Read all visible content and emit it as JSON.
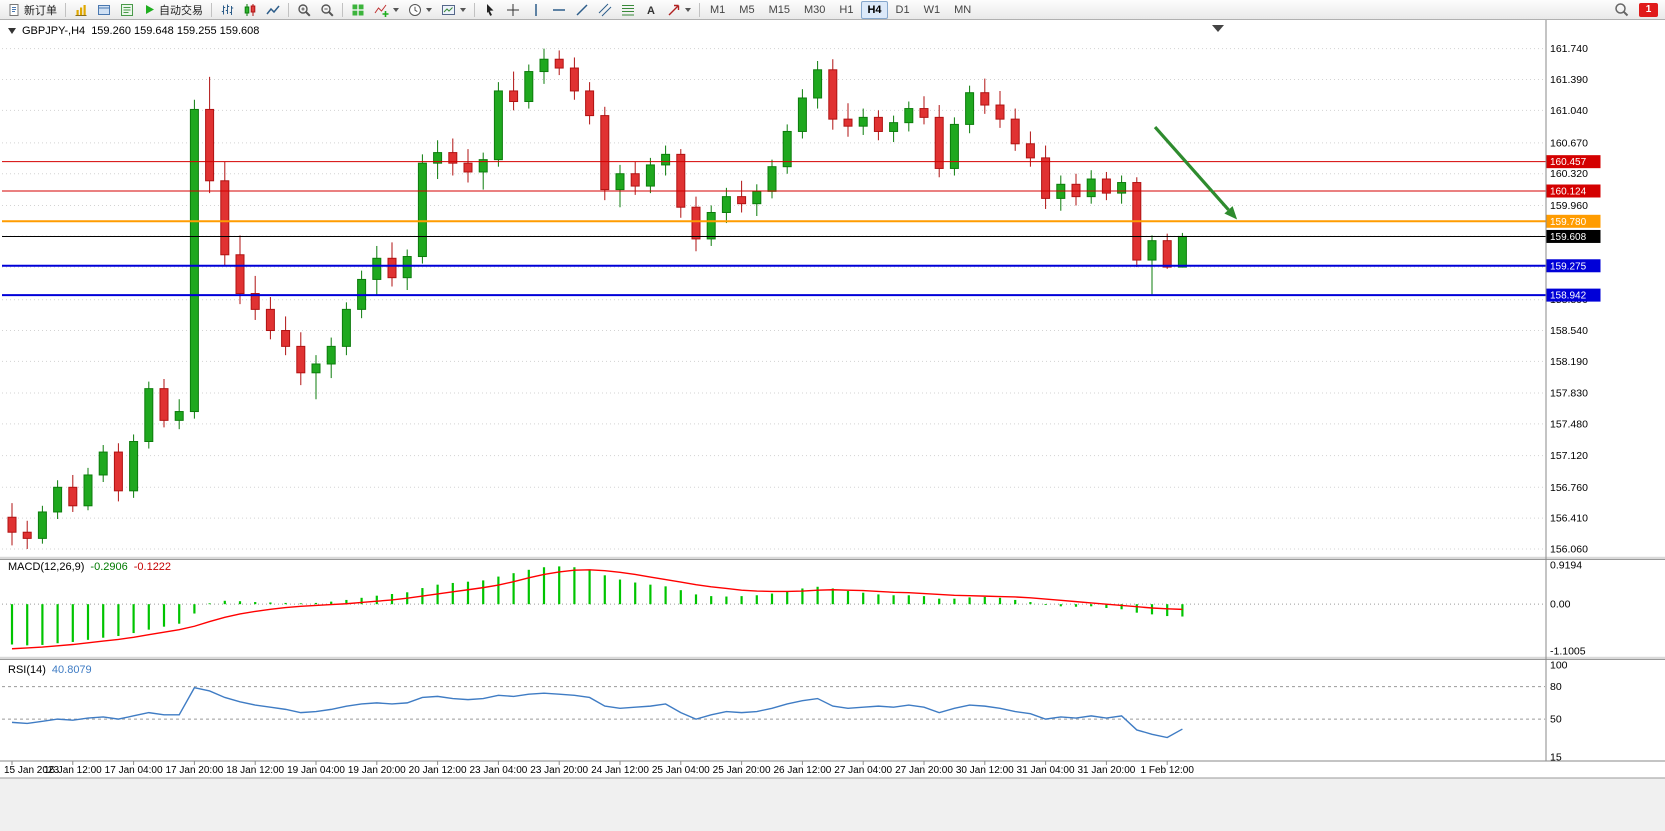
{
  "toolbar": {
    "new_order_label": "新订单",
    "auto_trading_label": "自动交易",
    "timeframes": [
      "M1",
      "M5",
      "M15",
      "M30",
      "H1",
      "H4",
      "D1",
      "W1",
      "MN"
    ],
    "active_timeframe": "H4",
    "notification_badge": "1",
    "icon_names": [
      "new-order-icon",
      "new-chart-icon",
      "profiles-icon",
      "market-watch-icon",
      "auto-trading-icon",
      "bar-chart-icon",
      "candlestick-chart-icon",
      "line-chart-icon",
      "zoom-in-icon",
      "zoom-out-icon",
      "tile-windows-icon",
      "indicators-icon",
      "periods-icon",
      "templates-icon",
      "cursor-icon",
      "crosshair-icon",
      "vertical-line-icon",
      "horizontal-line-icon",
      "trendline-icon",
      "channel-icon",
      "fibonacci-icon",
      "text-icon",
      "arrows-icon",
      "chevron-down-icon",
      "search-icon"
    ]
  },
  "chart_header": {
    "symbol_period": "GBPJPY-,H4",
    "ohlc_text": "159.260 159.648 159.255 159.608"
  },
  "chart_data": {
    "type": "candlestick",
    "symbol": "GBPJPY-",
    "period": "H4",
    "last_ohlc": {
      "open": "159.260",
      "high": "159.648",
      "low": "159.255",
      "close": "159.608"
    },
    "ylim": [
      155.98,
      162.02
    ],
    "y_ticks": [
      "161.740",
      "161.390",
      "161.040",
      "160.670",
      "160.320",
      "159.960",
      "159.610",
      "159.260",
      "158.890",
      "158.540",
      "158.190",
      "157.830",
      "157.480",
      "157.120",
      "156.760",
      "156.410",
      "156.060"
    ],
    "x_labels": [
      "15 Jan 2023",
      "16 Jan 12:00",
      "17 Jan 04:00",
      "17 Jan 20:00",
      "18 Jan 12:00",
      "19 Jan 04:00",
      "19 Jan 20:00",
      "20 Jan 12:00",
      "23 Jan 04:00",
      "23 Jan 20:00",
      "24 Jan 12:00",
      "25 Jan 04:00",
      "25 Jan 20:00",
      "26 Jan 12:00",
      "27 Jan 04:00",
      "27 Jan 20:00",
      "30 Jan 12:00",
      "31 Jan 04:00",
      "31 Jan 20:00",
      "1 Feb 12:00"
    ],
    "x_label_every": 4,
    "bull_color": "#1fa81f",
    "bear_color": "#e03232",
    "candles": [
      [
        156.42,
        156.58,
        156.1,
        156.25
      ],
      [
        156.25,
        156.38,
        156.06,
        156.18
      ],
      [
        156.18,
        156.55,
        156.12,
        156.48
      ],
      [
        156.48,
        156.84,
        156.4,
        156.76
      ],
      [
        156.76,
        156.9,
        156.48,
        156.55
      ],
      [
        156.55,
        156.98,
        156.5,
        156.9
      ],
      [
        156.9,
        157.24,
        156.82,
        157.16
      ],
      [
        157.16,
        157.26,
        156.6,
        156.72
      ],
      [
        156.72,
        157.36,
        156.64,
        157.28
      ],
      [
        157.28,
        157.96,
        157.2,
        157.88
      ],
      [
        157.88,
        157.99,
        157.44,
        157.52
      ],
      [
        157.52,
        157.76,
        157.42,
        157.62
      ],
      [
        157.62,
        161.16,
        157.54,
        161.05
      ],
      [
        161.05,
        161.42,
        160.1,
        160.24
      ],
      [
        160.24,
        160.46,
        159.28,
        159.4
      ],
      [
        159.4,
        159.62,
        158.84,
        158.96
      ],
      [
        158.96,
        159.16,
        158.66,
        158.78
      ],
      [
        158.78,
        158.92,
        158.44,
        158.54
      ],
      [
        158.54,
        158.7,
        158.26,
        158.36
      ],
      [
        158.36,
        158.52,
        157.92,
        158.06
      ],
      [
        158.06,
        158.26,
        157.76,
        158.16
      ],
      [
        158.16,
        158.46,
        158.0,
        158.36
      ],
      [
        158.36,
        158.86,
        158.26,
        158.78
      ],
      [
        158.78,
        159.22,
        158.68,
        159.12
      ],
      [
        159.12,
        159.5,
        158.94,
        159.36
      ],
      [
        159.36,
        159.54,
        159.04,
        159.14
      ],
      [
        159.14,
        159.46,
        159.0,
        159.38
      ],
      [
        159.38,
        160.54,
        159.3,
        160.44
      ],
      [
        160.44,
        160.7,
        160.26,
        160.56
      ],
      [
        160.56,
        160.72,
        160.3,
        160.44
      ],
      [
        160.44,
        160.6,
        160.22,
        160.34
      ],
      [
        160.34,
        160.56,
        160.14,
        160.48
      ],
      [
        160.48,
        161.36,
        160.4,
        161.26
      ],
      [
        161.26,
        161.48,
        161.04,
        161.14
      ],
      [
        161.14,
        161.56,
        161.06,
        161.48
      ],
      [
        161.48,
        161.74,
        161.34,
        161.62
      ],
      [
        161.62,
        161.72,
        161.44,
        161.52
      ],
      [
        161.52,
        161.64,
        161.16,
        161.26
      ],
      [
        161.26,
        161.36,
        160.88,
        160.98
      ],
      [
        160.98,
        161.08,
        160.02,
        160.14
      ],
      [
        160.14,
        160.42,
        159.94,
        160.32
      ],
      [
        160.32,
        160.46,
        160.08,
        160.18
      ],
      [
        160.18,
        160.5,
        160.1,
        160.42
      ],
      [
        160.42,
        160.64,
        160.3,
        160.54
      ],
      [
        160.54,
        160.6,
        159.82,
        159.94
      ],
      [
        159.94,
        160.06,
        159.44,
        159.58
      ],
      [
        159.58,
        159.96,
        159.5,
        159.88
      ],
      [
        159.88,
        160.16,
        159.76,
        160.06
      ],
      [
        160.06,
        160.24,
        159.88,
        159.98
      ],
      [
        159.98,
        160.2,
        159.84,
        160.12
      ],
      [
        160.12,
        160.48,
        160.04,
        160.4
      ],
      [
        160.4,
        160.88,
        160.32,
        160.8
      ],
      [
        160.8,
        161.28,
        160.72,
        161.18
      ],
      [
        161.18,
        161.6,
        161.06,
        161.5
      ],
      [
        161.5,
        161.62,
        160.82,
        160.94
      ],
      [
        160.94,
        161.12,
        160.74,
        160.86
      ],
      [
        160.86,
        161.06,
        160.76,
        160.96
      ],
      [
        160.96,
        161.04,
        160.7,
        160.8
      ],
      [
        160.8,
        160.98,
        160.68,
        160.9
      ],
      [
        160.9,
        161.14,
        160.8,
        161.06
      ],
      [
        161.06,
        161.2,
        160.88,
        160.96
      ],
      [
        160.96,
        161.1,
        160.28,
        160.38
      ],
      [
        160.38,
        160.96,
        160.3,
        160.88
      ],
      [
        160.88,
        161.32,
        160.78,
        161.24
      ],
      [
        161.24,
        161.4,
        161.0,
        161.1
      ],
      [
        161.1,
        161.26,
        160.84,
        160.94
      ],
      [
        160.94,
        161.06,
        160.58,
        160.66
      ],
      [
        160.66,
        160.8,
        160.4,
        160.5
      ],
      [
        160.5,
        160.64,
        159.92,
        160.04
      ],
      [
        160.04,
        160.3,
        159.9,
        160.2
      ],
      [
        160.2,
        160.32,
        159.96,
        160.06
      ],
      [
        160.06,
        160.36,
        159.98,
        160.26
      ],
      [
        160.26,
        160.34,
        160.02,
        160.1
      ],
      [
        160.1,
        160.3,
        159.98,
        160.22
      ],
      [
        160.22,
        160.28,
        159.26,
        159.34
      ],
      [
        159.34,
        159.62,
        158.95,
        159.56
      ],
      [
        159.56,
        159.64,
        159.24,
        159.26
      ],
      [
        159.26,
        159.648,
        159.255,
        159.608
      ]
    ],
    "hlines": [
      {
        "price": 160.457,
        "label": "160.457",
        "color": "#d40000",
        "width": 1
      },
      {
        "price": 160.124,
        "label": "160.124",
        "color": "#d40000",
        "width": 1
      },
      {
        "price": 159.78,
        "label": "159.780",
        "color": "#ff9c00",
        "width": 2
      },
      {
        "price": 159.608,
        "label": "159.608",
        "color": "#000000",
        "width": 1
      },
      {
        "price": 159.275,
        "label": "159.275",
        "color": "#0000d8",
        "width": 2
      },
      {
        "price": 158.942,
        "label": "158.942",
        "color": "#0000d8",
        "width": 2
      }
    ],
    "annotation_arrow": {
      "from_bar": 75.2,
      "from_price": 160.85,
      "to_bar": 80.6,
      "to_price": 159.8,
      "color": "#2e8b2e"
    },
    "macd": {
      "label": "MACD(12,26,9)",
      "value_main": "-0.2906",
      "value_signal": "-0.1222",
      "ylim": [
        -1.15,
        0.97
      ],
      "y_ticks": [
        "0.9194",
        "0.00",
        "-1.1005"
      ],
      "hist_color": "#00c400",
      "signal_color": "#ff0000",
      "hist": [
        -0.95,
        -0.97,
        -0.96,
        -0.92,
        -0.89,
        -0.84,
        -0.79,
        -0.75,
        -0.68,
        -0.6,
        -0.53,
        -0.46,
        -0.22,
        0.02,
        0.08,
        0.07,
        0.05,
        0.04,
        0.03,
        0.02,
        0.03,
        0.06,
        0.1,
        0.15,
        0.2,
        0.24,
        0.28,
        0.38,
        0.46,
        0.5,
        0.53,
        0.56,
        0.65,
        0.73,
        0.81,
        0.87,
        0.89,
        0.87,
        0.8,
        0.68,
        0.58,
        0.51,
        0.46,
        0.42,
        0.33,
        0.23,
        0.19,
        0.18,
        0.19,
        0.21,
        0.25,
        0.31,
        0.37,
        0.41,
        0.37,
        0.31,
        0.27,
        0.23,
        0.21,
        0.21,
        0.19,
        0.13,
        0.13,
        0.16,
        0.17,
        0.15,
        0.1,
        0.05,
        -0.02,
        -0.05,
        -0.06,
        -0.05,
        -0.09,
        -0.12,
        -0.2,
        -0.24,
        -0.28,
        -0.2906
      ],
      "signal": [
        -1.05,
        -1.03,
        -1.01,
        -0.98,
        -0.95,
        -0.91,
        -0.87,
        -0.83,
        -0.78,
        -0.72,
        -0.66,
        -0.6,
        -0.52,
        -0.41,
        -0.31,
        -0.23,
        -0.17,
        -0.12,
        -0.08,
        -0.05,
        -0.03,
        -0.01,
        0.01,
        0.04,
        0.07,
        0.1,
        0.14,
        0.19,
        0.24,
        0.29,
        0.34,
        0.39,
        0.45,
        0.53,
        0.62,
        0.7,
        0.76,
        0.8,
        0.81,
        0.79,
        0.75,
        0.7,
        0.64,
        0.58,
        0.52,
        0.46,
        0.41,
        0.37,
        0.33,
        0.31,
        0.3,
        0.3,
        0.31,
        0.33,
        0.34,
        0.33,
        0.32,
        0.3,
        0.28,
        0.27,
        0.25,
        0.23,
        0.21,
        0.2,
        0.19,
        0.18,
        0.17,
        0.15,
        0.12,
        0.09,
        0.06,
        0.03,
        0.0,
        -0.03,
        -0.06,
        -0.09,
        -0.11,
        -0.1222
      ]
    },
    "rsi": {
      "label": "RSI(14)",
      "value_text": "40.8079",
      "ylim": [
        15,
        100
      ],
      "y_ticks": [
        "100",
        "80",
        "50",
        "15"
      ],
      "levels": [
        80,
        50
      ],
      "color": "#3f7cc4",
      "values": [
        47,
        46,
        48,
        50,
        49,
        51,
        52,
        50,
        53,
        56,
        54,
        54,
        79,
        76,
        70,
        66,
        63,
        61,
        59,
        56,
        57,
        59,
        62,
        64,
        65,
        64,
        65,
        70,
        71,
        69,
        68,
        69,
        72,
        71,
        73,
        74,
        73,
        72,
        70,
        62,
        60,
        61,
        62,
        64,
        56,
        50,
        54,
        57,
        56,
        57,
        60,
        64,
        67,
        69,
        62,
        60,
        61,
        62,
        61,
        63,
        61,
        56,
        60,
        63,
        62,
        60,
        57,
        55,
        50,
        52,
        51,
        53,
        51,
        53,
        40,
        36,
        33,
        40.8079
      ]
    }
  }
}
